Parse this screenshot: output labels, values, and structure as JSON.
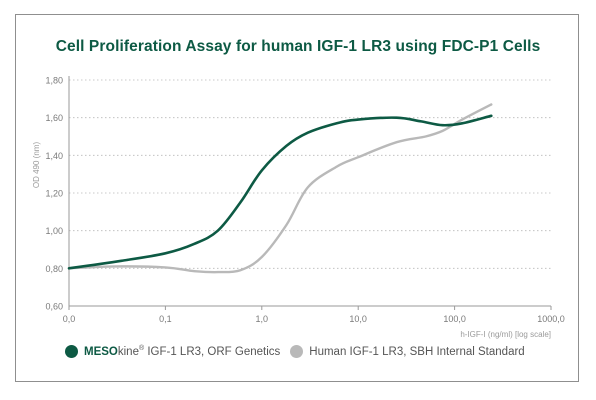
{
  "chart_data": {
    "type": "line",
    "title": "Cell Proliferation Assay for human IGF-1 LR3 using FDC-P1 Cells",
    "ylabel": "OD 490 (nm)",
    "xlabel": "h-IGF-I (ng/ml)  [log scale]",
    "x_scale": "log",
    "x_ticks": [
      "0,0",
      "0,1",
      "1,0",
      "10,0",
      "100,0",
      "1000,0"
    ],
    "y_ticks": [
      "0,60",
      "0,80",
      "1,00",
      "1,20",
      "1,40",
      "1,60",
      "1,80"
    ],
    "ylim": [
      0.6,
      1.8
    ],
    "grid": "horizontal dotted",
    "legend_position": "bottom",
    "series": [
      {
        "name": "IGF-1 LR3, ORF Genetics",
        "color": "#0d5a44",
        "x": [
          0.01,
          0.035,
          0.1,
          0.2,
          0.35,
          0.6,
          1.0,
          1.8,
          3.0,
          6.0,
          10.0,
          25.0,
          45.0,
          75.0,
          120.0,
          240.0
        ],
        "y": [
          0.8,
          0.84,
          0.88,
          0.93,
          1.0,
          1.15,
          1.32,
          1.45,
          1.52,
          1.57,
          1.59,
          1.6,
          1.58,
          1.56,
          1.57,
          1.61
        ]
      },
      {
        "name": "Human IGF-1 LR3, SBH Internal Standard",
        "color": "#b9b9b9",
        "x": [
          0.01,
          0.03,
          0.1,
          0.2,
          0.35,
          0.6,
          1.0,
          1.8,
          3.0,
          6.0,
          10.0,
          25.0,
          50.0,
          75.0,
          120.0,
          240.0
        ],
        "y": [
          0.8,
          0.81,
          0.805,
          0.785,
          0.78,
          0.79,
          0.86,
          1.03,
          1.23,
          1.34,
          1.39,
          1.47,
          1.5,
          1.53,
          1.59,
          1.67
        ]
      }
    ]
  },
  "legend": {
    "brand_bold": "MESO",
    "brand_suffix": "kine",
    "brand_reg": "®",
    "item1_label": " IGF-1 LR3, ORF Genetics",
    "item2_label": "Human IGF-1 LR3, SBH Internal Standard"
  },
  "colors": {
    "axis": "#9a9a9a",
    "grid": "#b9b9b9",
    "tick_text": "#7a7a7a"
  }
}
